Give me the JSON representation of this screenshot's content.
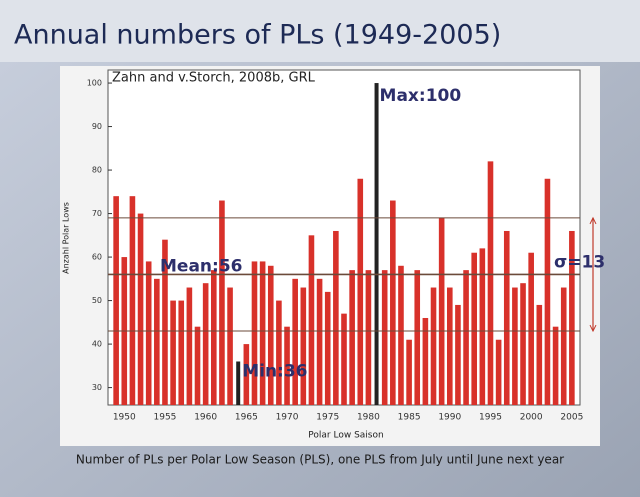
{
  "slide_title": "Annual numbers of PLs (1949-2005)",
  "caption": "Number of PLs per Polar Low Season (PLS), one PLS from July until June next year",
  "chart_data": {
    "type": "bar",
    "note": "Zahn and v.Storch, 2008b, GRL",
    "xlabel": "Polar Low Saison",
    "ylabel": "Anzahl Polar Lows",
    "x": [
      1949,
      1950,
      1951,
      1952,
      1953,
      1954,
      1955,
      1956,
      1957,
      1958,
      1959,
      1960,
      1961,
      1962,
      1963,
      1964,
      1965,
      1966,
      1967,
      1968,
      1969,
      1970,
      1971,
      1972,
      1973,
      1974,
      1975,
      1976,
      1977,
      1978,
      1979,
      1980,
      1981,
      1982,
      1983,
      1984,
      1985,
      1986,
      1987,
      1988,
      1989,
      1990,
      1991,
      1992,
      1993,
      1994,
      1995,
      1996,
      1997,
      1998,
      1999,
      2000,
      2001,
      2002,
      2003,
      2004,
      2005
    ],
    "values": [
      74,
      60,
      74,
      70,
      59,
      55,
      64,
      50,
      50,
      53,
      44,
      54,
      57,
      73,
      53,
      36,
      40,
      59,
      59,
      58,
      50,
      44,
      55,
      53,
      65,
      55,
      52,
      66,
      47,
      57,
      78,
      57,
      100,
      57,
      73,
      58,
      41,
      57,
      46,
      53,
      69,
      53,
      49,
      57,
      61,
      62,
      82,
      41,
      66,
      53,
      54,
      61,
      49,
      78,
      44,
      53,
      66
    ],
    "color": "#d8312a",
    "highlight_color": "#222222",
    "xlim": [
      1948,
      2006
    ],
    "xticks": [
      1950,
      1955,
      1960,
      1965,
      1970,
      1975,
      1980,
      1985,
      1990,
      1995,
      2000,
      2005
    ],
    "ylim": [
      26,
      103
    ],
    "yticks": [
      30,
      40,
      50,
      60,
      70,
      80,
      90,
      100
    ],
    "reference_lines": [
      43,
      56,
      69
    ],
    "reference_color": "#6b4a3a",
    "annotations": {
      "max": "Max:100",
      "min": "Min:36",
      "mean": "Mean:56",
      "sigma": "σ=13"
    }
  }
}
